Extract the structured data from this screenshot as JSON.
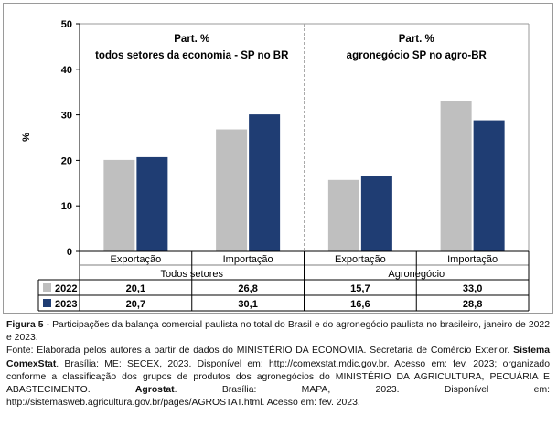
{
  "chart_data": {
    "type": "bar",
    "ylabel": "%",
    "ylim": [
      0,
      50
    ],
    "yticks": [
      "0",
      "10",
      "20",
      "30",
      "40",
      "50"
    ],
    "panels": [
      {
        "title_line1": "Part. %",
        "title_line2": "todos setores da economia - SP no BR",
        "group_label": "Todos setores"
      },
      {
        "title_line1": "Part. %",
        "title_line2": "agronegócio SP no agro-BR",
        "group_label": "Agronegócio"
      }
    ],
    "categories": [
      "Exportação",
      "Importação",
      "Exportação",
      "Importação"
    ],
    "series": [
      {
        "name": "2022",
        "color": "#bfbfbf",
        "values": [
          20.1,
          26.8,
          15.7,
          33.0
        ],
        "labels": [
          "20,1",
          "26,8",
          "15,7",
          "33,0"
        ]
      },
      {
        "name": "2023",
        "color": "#1f3d73",
        "values": [
          20.7,
          30.1,
          16.6,
          28.8
        ],
        "labels": [
          "20,7",
          "30,1",
          "16,6",
          "28,8"
        ]
      }
    ],
    "grid": false
  },
  "caption": {
    "figure_label": "Figura 5 -",
    "figure_text": " Participações da balança comercial paulista no total do Brasil e do agronegócio paulista no brasileiro, janeiro de 2022 e 2023.",
    "source_1": "Fonte: Elaborada pelos autores a partir de dados do MINISTÉRIO DA ECONOMIA. Secretaria de Comércio Exterior. ",
    "source_bold_1": "Sistema ComexStat",
    "source_2": ". Brasília: ME: SECEX, 2023. Disponível em: http://comexstat.mdic.gov.br. Acesso em: fev. 2023; organizado conforme a classificação dos grupos de produtos dos agronegócios do MINISTÉRIO DA AGRICULTURA, PECUÁRIA E ABASTECIMENTO. ",
    "source_bold_2": "Agrostat",
    "source_3": ". Brasília: MAPA, 2023. Disponível em: http://sistemasweb.agricultura.gov.br/pages/AGROSTAT.html. Acesso em: fev. 2023."
  }
}
